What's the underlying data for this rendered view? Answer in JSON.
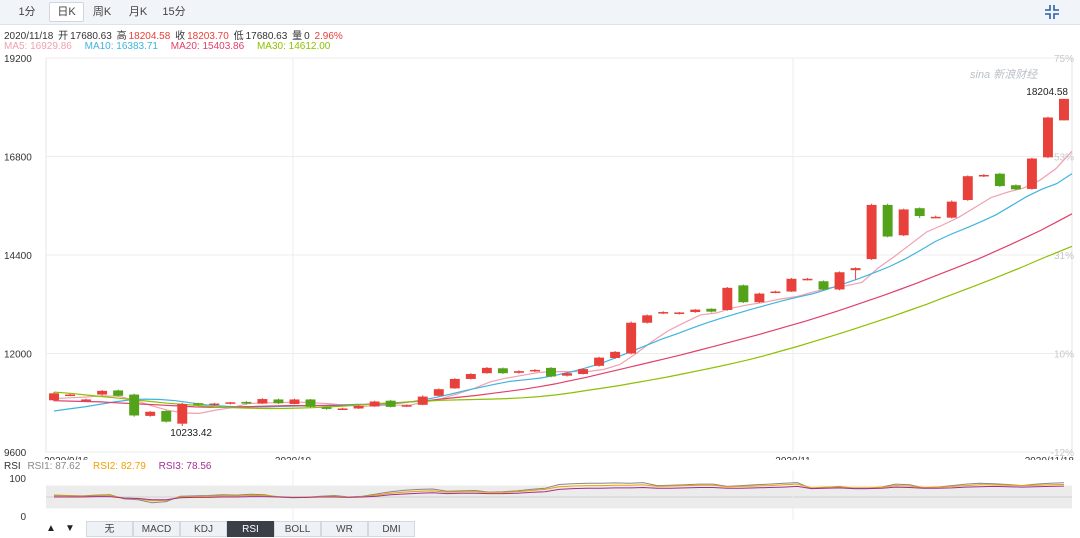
{
  "tabs": [
    {
      "label": "1分",
      "active": false
    },
    {
      "label": "日K",
      "active": true
    },
    {
      "label": "周K",
      "active": false
    },
    {
      "label": "月K",
      "active": false
    },
    {
      "label": "15分",
      "active": false
    }
  ],
  "info": {
    "date": "2020/11/18",
    "open_label": "开",
    "open": "17680.63",
    "high_label": "高",
    "high": "18204.58",
    "close_label": "收",
    "close": "18203.70",
    "low_label": "低",
    "low": "17680.63",
    "vol_label": "量",
    "vol": "0",
    "change": "2.96%"
  },
  "ma_legend": [
    {
      "label": "MA5: 16929.86",
      "color": "#f0a0b0"
    },
    {
      "label": "MA10: 16383.71",
      "color": "#40b4e0"
    },
    {
      "label": "MA20: 15403.86",
      "color": "#e0406a"
    },
    {
      "label": "MA30: 14612.00",
      "color": "#8cc000"
    }
  ],
  "rsi_legend": {
    "name": "RSI",
    "items": [
      {
        "label": "RSI1: 87.62",
        "color": "#888888"
      },
      {
        "label": "RSI2: 82.79",
        "color": "#f0a000"
      },
      {
        "label": "RSI3: 78.56",
        "color": "#a03090"
      }
    ]
  },
  "watermark": "sina 新浪财经",
  "indicator_tabs": [
    {
      "label": "无",
      "active": false
    },
    {
      "label": "MACD",
      "active": false
    },
    {
      "label": "KDJ",
      "active": false
    },
    {
      "label": "RSI",
      "active": true
    },
    {
      "label": "BOLL",
      "active": false
    },
    {
      "label": "WR",
      "active": false
    },
    {
      "label": "DMI",
      "active": false
    }
  ],
  "arrows": {
    "up": "▲",
    "down": "▼"
  },
  "colors": {
    "up": "#e8403a",
    "down": "#52a21a"
  },
  "chart_data": {
    "type": "candlestick",
    "ylim": [
      9600,
      19200
    ],
    "y_ticks": [
      "19200",
      "16800",
      "14400",
      "12000",
      "9600"
    ],
    "pct_ticks": [
      "75%",
      "53%",
      "31%",
      "10%",
      "-12%"
    ],
    "x_ticks": [
      "2020/9/16",
      "2020/10",
      "2020/11",
      "2020/11/18"
    ],
    "max_label": "18204.58",
    "min_label": "10233.42",
    "candles": [
      {
        "o": 10860,
        "c": 11030,
        "h": 11060,
        "l": 10830
      },
      {
        "o": 10990,
        "c": 11000,
        "h": 11020,
        "l": 10960
      },
      {
        "o": 10870,
        "c": 10880,
        "h": 10900,
        "l": 10850
      },
      {
        "o": 11000,
        "c": 11090,
        "h": 11110,
        "l": 10980
      },
      {
        "o": 11100,
        "c": 10970,
        "h": 11120,
        "l": 10950
      },
      {
        "o": 11000,
        "c": 10490,
        "h": 11020,
        "l": 10460
      },
      {
        "o": 10480,
        "c": 10580,
        "h": 10600,
        "l": 10460
      },
      {
        "o": 10600,
        "c": 10340,
        "h": 10620,
        "l": 10320
      },
      {
        "o": 10290,
        "c": 10770,
        "h": 10800,
        "l": 10233.42
      },
      {
        "o": 10790,
        "c": 10750,
        "h": 10800,
        "l": 10730
      },
      {
        "o": 10750,
        "c": 10780,
        "h": 10800,
        "l": 10730
      },
      {
        "o": 10780,
        "c": 10810,
        "h": 10820,
        "l": 10760
      },
      {
        "o": 10820,
        "c": 10780,
        "h": 10840,
        "l": 10760
      },
      {
        "o": 10780,
        "c": 10890,
        "h": 10910,
        "l": 10770
      },
      {
        "o": 10880,
        "c": 10790,
        "h": 10900,
        "l": 10770
      },
      {
        "o": 10770,
        "c": 10880,
        "h": 10900,
        "l": 10760
      },
      {
        "o": 10880,
        "c": 10700,
        "h": 10890,
        "l": 10680
      },
      {
        "o": 10690,
        "c": 10650,
        "h": 10700,
        "l": 10630
      },
      {
        "o": 10640,
        "c": 10660,
        "h": 10680,
        "l": 10630
      },
      {
        "o": 10660,
        "c": 10720,
        "h": 10740,
        "l": 10650
      },
      {
        "o": 10710,
        "c": 10830,
        "h": 10850,
        "l": 10700
      },
      {
        "o": 10850,
        "c": 10700,
        "h": 10870,
        "l": 10690
      },
      {
        "o": 10720,
        "c": 10740,
        "h": 10760,
        "l": 10700
      },
      {
        "o": 10750,
        "c": 10950,
        "h": 10980,
        "l": 10740
      },
      {
        "o": 10970,
        "c": 11130,
        "h": 11150,
        "l": 10960
      },
      {
        "o": 11150,
        "c": 11380,
        "h": 11400,
        "l": 11140
      },
      {
        "o": 11380,
        "c": 11500,
        "h": 11520,
        "l": 11370
      },
      {
        "o": 11520,
        "c": 11650,
        "h": 11670,
        "l": 11510
      },
      {
        "o": 11640,
        "c": 11520,
        "h": 11660,
        "l": 11500
      },
      {
        "o": 11530,
        "c": 11570,
        "h": 11590,
        "l": 11510
      },
      {
        "o": 11570,
        "c": 11600,
        "h": 11620,
        "l": 11550
      },
      {
        "o": 11650,
        "c": 11440,
        "h": 11670,
        "l": 11420
      },
      {
        "o": 11460,
        "c": 11520,
        "h": 11540,
        "l": 11440
      },
      {
        "o": 11500,
        "c": 11620,
        "h": 11640,
        "l": 11490
      },
      {
        "o": 11700,
        "c": 11900,
        "h": 11920,
        "l": 11680
      },
      {
        "o": 11890,
        "c": 12040,
        "h": 12060,
        "l": 11870
      },
      {
        "o": 12000,
        "c": 12750,
        "h": 12780,
        "l": 11980
      },
      {
        "o": 12750,
        "c": 12930,
        "h": 12950,
        "l": 12730
      },
      {
        "o": 12980,
        "c": 13010,
        "h": 13030,
        "l": 12960
      },
      {
        "o": 12970,
        "c": 13000,
        "h": 13010,
        "l": 12950
      },
      {
        "o": 13010,
        "c": 13070,
        "h": 13080,
        "l": 12990
      },
      {
        "o": 13090,
        "c": 13020,
        "h": 13100,
        "l": 13000
      },
      {
        "o": 13060,
        "c": 13600,
        "h": 13620,
        "l": 13040
      },
      {
        "o": 13660,
        "c": 13250,
        "h": 13680,
        "l": 13230
      },
      {
        "o": 13250,
        "c": 13460,
        "h": 13480,
        "l": 13230
      },
      {
        "o": 13490,
        "c": 13510,
        "h": 13530,
        "l": 13470
      },
      {
        "o": 13510,
        "c": 13820,
        "h": 13840,
        "l": 13500
      },
      {
        "o": 13800,
        "c": 13820,
        "h": 13840,
        "l": 13780
      },
      {
        "o": 13760,
        "c": 13560,
        "h": 13780,
        "l": 13540
      },
      {
        "o": 13560,
        "c": 13980,
        "h": 14000,
        "l": 13540
      },
      {
        "o": 14030,
        "c": 14080,
        "h": 14100,
        "l": 13800
      },
      {
        "o": 14300,
        "c": 15620,
        "h": 15650,
        "l": 14280
      },
      {
        "o": 15620,
        "c": 14850,
        "h": 15650,
        "l": 14830
      },
      {
        "o": 14880,
        "c": 15510,
        "h": 15530,
        "l": 14860
      },
      {
        "o": 15540,
        "c": 15350,
        "h": 15560,
        "l": 15300
      },
      {
        "o": 15330,
        "c": 15330,
        "h": 15360,
        "l": 15300
      },
      {
        "o": 15310,
        "c": 15700,
        "h": 15730,
        "l": 15290
      },
      {
        "o": 15740,
        "c": 16320,
        "h": 16340,
        "l": 15720
      },
      {
        "o": 16320,
        "c": 16350,
        "h": 16370,
        "l": 16300
      },
      {
        "o": 16380,
        "c": 16080,
        "h": 16400,
        "l": 16060
      },
      {
        "o": 16100,
        "c": 16000,
        "h": 16120,
        "l": 15980
      },
      {
        "o": 16010,
        "c": 16750,
        "h": 16770,
        "l": 15990
      },
      {
        "o": 16780,
        "c": 17750,
        "h": 17770,
        "l": 16760
      },
      {
        "o": 17680.63,
        "c": 18203.7,
        "h": 18204.58,
        "l": 17680.63
      }
    ],
    "ma": [
      {
        "name": "MA5",
        "color": "#f0a0b0",
        "values": [
          10900,
          10920,
          10940,
          10970,
          10960,
          10860,
          10730,
          10620,
          10550,
          10540,
          10620,
          10680,
          10780,
          10800,
          10800,
          10820,
          10800,
          10780,
          10740,
          10710,
          10730,
          10740,
          10740,
          10820,
          10900,
          11020,
          11150,
          11310,
          11400,
          11470,
          11540,
          11560,
          11560,
          11560,
          11610,
          11730,
          11990,
          12290,
          12550,
          12750,
          12940,
          12990,
          13110,
          13190,
          13250,
          13330,
          13390,
          13500,
          13600,
          13650,
          13730,
          14080,
          14360,
          14660,
          14960,
          15130,
          15320,
          15560,
          15800,
          15930,
          16030,
          16220,
          16500,
          16929.86
        ]
      },
      {
        "name": "MA10",
        "color": "#40b4e0",
        "values": [
          10600,
          10650,
          10700,
          10760,
          10820,
          10870,
          10890,
          10880,
          10850,
          10800,
          10750,
          10720,
          10700,
          10700,
          10700,
          10710,
          10720,
          10730,
          10740,
          10750,
          10760,
          10760,
          10770,
          10800,
          10850,
          10920,
          11000,
          11090,
          11170,
          11250,
          11320,
          11360,
          11400,
          11470,
          11550,
          11650,
          11760,
          11900,
          12050,
          12200,
          12350,
          12480,
          12620,
          12750,
          12870,
          12980,
          13090,
          13190,
          13290,
          13380,
          13460,
          13580,
          13700,
          13830,
          13970,
          14120,
          14300,
          14510,
          14730,
          14900,
          15050,
          15210,
          15380,
          15600,
          15820,
          16000,
          16140,
          16383.71
        ]
      },
      {
        "name": "MA20",
        "color": "#e0406a",
        "values": [
          10850,
          10840,
          10830,
          10820,
          10800,
          10780,
          10760,
          10740,
          10720,
          10700,
          10690,
          10690,
          10700,
          10710,
          10720,
          10730,
          10730,
          10730,
          10730,
          10740,
          10760,
          10780,
          10800,
          10830,
          10860,
          10900,
          10940,
          10980,
          11030,
          11080,
          11130,
          11190,
          11260,
          11340,
          11420,
          11510,
          11600,
          11690,
          11780,
          11870,
          11960,
          12060,
          12160,
          12260,
          12360,
          12460,
          12570,
          12680,
          12790,
          12910,
          13030,
          13160,
          13290,
          13420,
          13560,
          13700,
          13850,
          14000,
          14150,
          14300,
          14470,
          14640,
          14820,
          15000,
          15200,
          15403.86
        ]
      },
      {
        "name": "MA30",
        "color": "#8cc000",
        "values": [
          11060,
          11030,
          10990,
          10950,
          10910,
          10870,
          10830,
          10790,
          10760,
          10730,
          10700,
          10680,
          10670,
          10660,
          10660,
          10670,
          10680,
          10700,
          10720,
          10750,
          10780,
          10800,
          10820,
          10840,
          10860,
          10870,
          10880,
          10890,
          10900,
          10920,
          10950,
          10990,
          11040,
          11100,
          11160,
          11220,
          11290,
          11360,
          11430,
          11510,
          11590,
          11670,
          11760,
          11850,
          11950,
          12060,
          12170,
          12290,
          12410,
          12530,
          12660,
          12790,
          12920,
          13060,
          13200,
          13350,
          13500,
          13650,
          13800,
          13960,
          14120,
          14290,
          14450,
          14612.0
        ]
      }
    ],
    "rsi": [
      {
        "name": "RSI1",
        "color": "#888888",
        "values": [
          55,
          54,
          53,
          55,
          56,
          45,
          43,
          35,
          38,
          52,
          53,
          54,
          56,
          55,
          57,
          56,
          50,
          48,
          49,
          52,
          54,
          50,
          52,
          58,
          64,
          68,
          70,
          71,
          65,
          66,
          67,
          63,
          64,
          66,
          70,
          73,
          83,
          85,
          86,
          86,
          87,
          86,
          88,
          80,
          81,
          82,
          84,
          84,
          78,
          80,
          82,
          84,
          86,
          88,
          72,
          75,
          78,
          72,
          72,
          76,
          84,
          82,
          74,
          76,
          80,
          84,
          86,
          85,
          83,
          80,
          84,
          86,
          87.62
        ]
      },
      {
        "name": "RSI2",
        "color": "#f0a000",
        "values": [
          53,
          53,
          52,
          53,
          54,
          47,
          45,
          40,
          41,
          50,
          51,
          52,
          53,
          53,
          54,
          54,
          51,
          49,
          50,
          51,
          52,
          50,
          51,
          55,
          60,
          63,
          65,
          66,
          63,
          64,
          64,
          62,
          62,
          64,
          67,
          70,
          77,
          79,
          80,
          80,
          81,
          81,
          82,
          78,
          79,
          80,
          81,
          81,
          77,
          78,
          79,
          80,
          82,
          84,
          74,
          76,
          77,
          74,
          74,
          76,
          80,
          79,
          75,
          76,
          78,
          80,
          82,
          82,
          81,
          80,
          81,
          82,
          82.79
        ]
      },
      {
        "name": "RSI3",
        "color": "#a03090",
        "values": [
          50,
          50,
          50,
          51,
          51,
          47,
          46,
          43,
          43,
          48,
          49,
          49,
          50,
          50,
          51,
          51,
          50,
          49,
          49,
          50,
          50,
          49,
          50,
          52,
          56,
          58,
          60,
          61,
          59,
          60,
          60,
          59,
          59,
          60,
          62,
          64,
          70,
          72,
          73,
          73,
          74,
          74,
          75,
          73,
          73,
          74,
          75,
          75,
          73,
          73,
          74,
          75,
          76,
          78,
          72,
          73,
          74,
          72,
          72,
          73,
          76,
          75,
          73,
          73,
          74,
          76,
          77,
          78,
          77,
          76,
          77,
          78,
          78.56
        ]
      }
    ],
    "rsi_ticks": [
      "100",
      "0"
    ]
  }
}
